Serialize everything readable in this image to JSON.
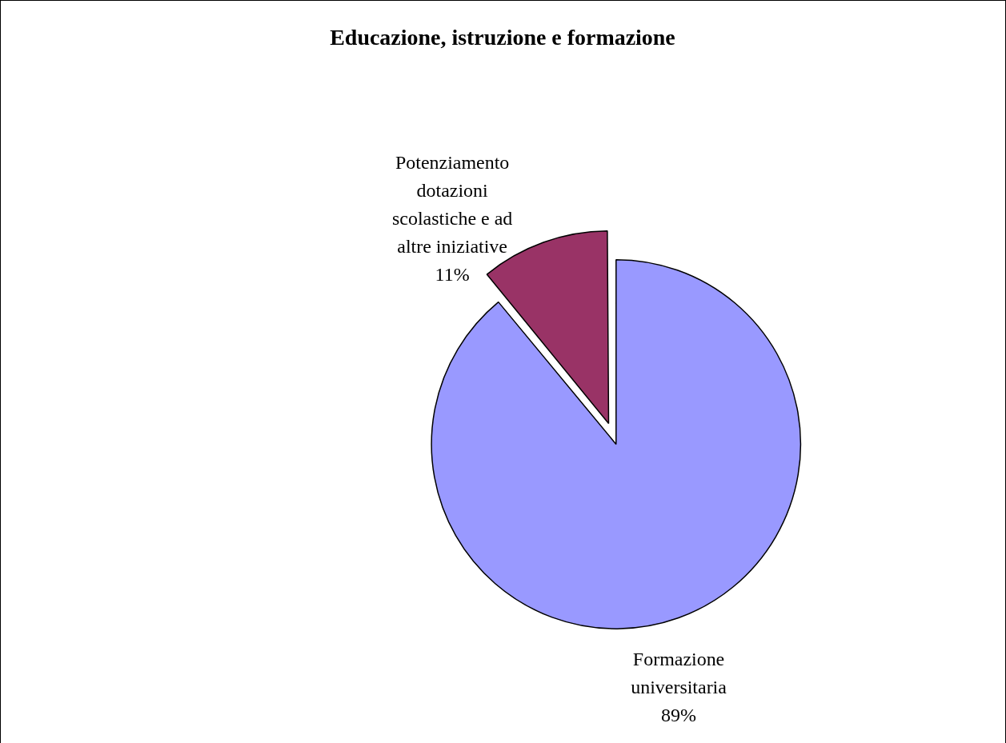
{
  "chart_data": {
    "type": "pie",
    "title": "Educazione, istruzione e formazione",
    "categories": [
      "Formazione universitaria",
      "Potenziamento dotazioni scolastiche e ad altre iniziative"
    ],
    "values": [
      89,
      11
    ],
    "value_labels": [
      "89%",
      "11%"
    ],
    "colors": [
      "#9999ff",
      "#993366"
    ],
    "legend": false
  }
}
